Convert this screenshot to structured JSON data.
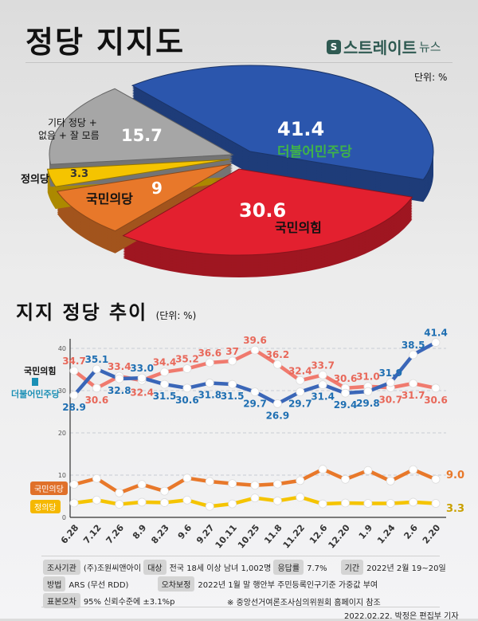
{
  "header": {
    "title": "정당 지지도",
    "logo_text": "스트레이트",
    "logo_suffix": "뉴스",
    "unit": "단위: %"
  },
  "chart_data": [
    {
      "type": "pie",
      "style": "3d-exploded",
      "slices": [
        {
          "name": "더불어민주당",
          "value": 41.4,
          "color": "#2b56ad"
        },
        {
          "name": "국민의힘",
          "value": 30.6,
          "color": "#e3202f"
        },
        {
          "name": "국민의당",
          "value": 9.0,
          "color": "#e8782a"
        },
        {
          "name": "정의당",
          "value": 3.3,
          "color": "#f5c400"
        },
        {
          "name": "기타 정당 + 없음 + 잘 모름",
          "value": 15.7,
          "color": "#a6a6a6"
        }
      ],
      "label_other_line1": "기타 정당 +",
      "label_other_line2": "없음 + 잘 모름"
    },
    {
      "type": "line",
      "title": "지지 정당 추이",
      "unit": "(단위: %)",
      "categories": [
        "6.28",
        "7.12",
        "7.26",
        "8.9",
        "8.23",
        "9.6",
        "9.27",
        "10.11",
        "10.25",
        "11.8",
        "11.22",
        "12.6",
        "12.20",
        "1.9",
        "1.24",
        "2.6",
        "2.20"
      ],
      "yticks": [
        0,
        10,
        20,
        30,
        40
      ],
      "ylim": [
        0,
        42
      ],
      "grid": "dashed horizontal",
      "series": [
        {
          "name": "더불어민주당",
          "color": "#3a66b8",
          "label_color": "#1f6fb2",
          "values": [
            28.9,
            35.1,
            32.8,
            33.0,
            31.5,
            30.6,
            31.8,
            31.5,
            29.7,
            26.9,
            29.7,
            31.4,
            29.4,
            29.8,
            31.9,
            38.5,
            41.4
          ]
        },
        {
          "name": "국민의힘",
          "color": "#f07a6e",
          "label_color": "#e8685a",
          "values": [
            34.7,
            30.6,
            33.4,
            32.4,
            34.4,
            35.2,
            36.6,
            37,
            39.6,
            36.2,
            32.4,
            33.7,
            30.6,
            31.0,
            30.7,
            31.7,
            30.6
          ]
        },
        {
          "name": "국민의당",
          "color": "#e8782a",
          "label_color": "#e8782a",
          "values": [
            7.8,
            9.2,
            5.8,
            7.8,
            6.2,
            9.3,
            8.5,
            8.0,
            7.6,
            7.9,
            8.7,
            11.4,
            9.0,
            11.1,
            8.6,
            11.3,
            9.0
          ],
          "last_label": "9.0"
        },
        {
          "name": "정의당",
          "color": "#f5c400",
          "label_color": "#c9a000",
          "values": [
            3.4,
            4.1,
            3.1,
            3.6,
            3.5,
            4.1,
            2.6,
            3.2,
            4.6,
            3.9,
            4.8,
            3.2,
            3.4,
            3.3,
            3.3,
            3.6,
            3.3
          ],
          "last_label": "3.3"
        }
      ]
    }
  ],
  "footer": {
    "org_label": "조사기관",
    "org": "(주)조원씨앤아이",
    "target_label": "대상",
    "target": "전국 18세 이상 남녀 1,002명",
    "rate_label": "응답률",
    "rate": "7.7%",
    "period_label": "기간",
    "period": "2022년 2월 19~20일",
    "method_label": "방법",
    "method": "ARS (무선 RDD)",
    "weight_label": "오차보정",
    "weight": "2022년 1월 말 행안부 주민등록인구기준 가중값 부여",
    "error_label": "표본오차",
    "error": "95% 신뢰수준에 ±3.1%p",
    "note": "※ 중앙선거여론조사심의위원회 홈페이지 참조",
    "byline": "2022.02.22. 박정은 편집부 기자"
  }
}
